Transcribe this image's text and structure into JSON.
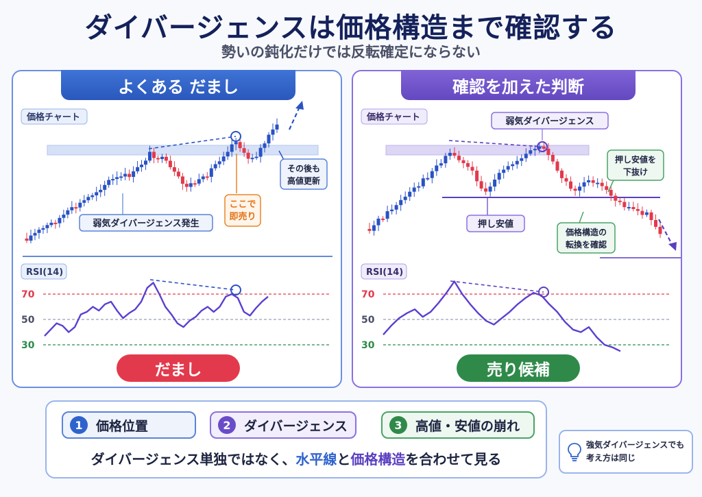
{
  "title": "ダイバージェンスは価格構造まで確認する",
  "subtitle": "勢いの鈍化だけでは反転確定にならない",
  "panels": [
    {
      "header": "よくある だまし",
      "price_chart_label": "価格チャート",
      "rsi_label": "RSI(14)",
      "annotations": {
        "weak_divergence": "弱気ダイバージェンス発生",
        "sell_here_line1": "ここで",
        "sell_here_line2": "即売り",
        "new_high_line1": "その後も",
        "new_high_line2": "高値更新"
      },
      "verdict": "だまし"
    },
    {
      "header": "確認を加えた判断",
      "price_chart_label": "価格チャート",
      "rsi_label": "RSI(14)",
      "annotations": {
        "weak_divergence": "弱気ダイバージェンス",
        "break_low_line1": "押し安値を",
        "break_low_line2": "下抜け",
        "pullback_low": "押し安値",
        "structure_line1": "価格構造の",
        "structure_line2": "転換を確認"
      },
      "verdict": "売り候補"
    }
  ],
  "rsi_levels": [
    "70",
    "50",
    "30"
  ],
  "colors": {
    "left_accent": "#2f63cc",
    "right_accent": "#6a4cc8",
    "bull_candle": "#2a52c4",
    "bear_candle": "#e23a4c",
    "level_70": "#e23a4c",
    "level_30": "#2f8a4a",
    "rsi_line": "#5b3fd0"
  },
  "checklist": [
    {
      "num": "1",
      "label": "価格位置"
    },
    {
      "num": "2",
      "label": "ダイバージェンス"
    },
    {
      "num": "3",
      "label": "高値・安値の崩れ"
    }
  ],
  "summary": {
    "part1": "ダイバージェンス単独ではなく、",
    "hl1": "水平線",
    "part2": "と",
    "hl2": "価格構造",
    "part3": "を合わせて見る"
  },
  "note": {
    "icon": "lightbulb-icon",
    "line1": "強気ダイバージェンスでも",
    "line2": "考え方は同じ"
  },
  "chart_data": [
    {
      "type": "line",
      "name": "left-rsi",
      "values": [
        37,
        42,
        47,
        45,
        40,
        44,
        54,
        56,
        60,
        57,
        62,
        64,
        57,
        51,
        55,
        58,
        64,
        75,
        79,
        70,
        60,
        54,
        47,
        44,
        49,
        52,
        57,
        60,
        56,
        60,
        68,
        70,
        67,
        56,
        53,
        59,
        64,
        68
      ],
      "hlines": [
        70,
        50,
        30
      ],
      "ylim": [
        25,
        85
      ]
    },
    {
      "type": "line",
      "name": "right-rsi",
      "values": [
        38,
        45,
        51,
        55,
        58,
        52,
        56,
        63,
        71,
        80,
        70,
        62,
        55,
        49,
        46,
        51,
        56,
        62,
        67,
        71,
        69,
        62,
        56,
        48,
        42,
        40,
        44,
        36,
        30,
        28,
        25
      ],
      "hlines": [
        70,
        50,
        30
      ],
      "ylim": [
        25,
        85
      ]
    }
  ]
}
